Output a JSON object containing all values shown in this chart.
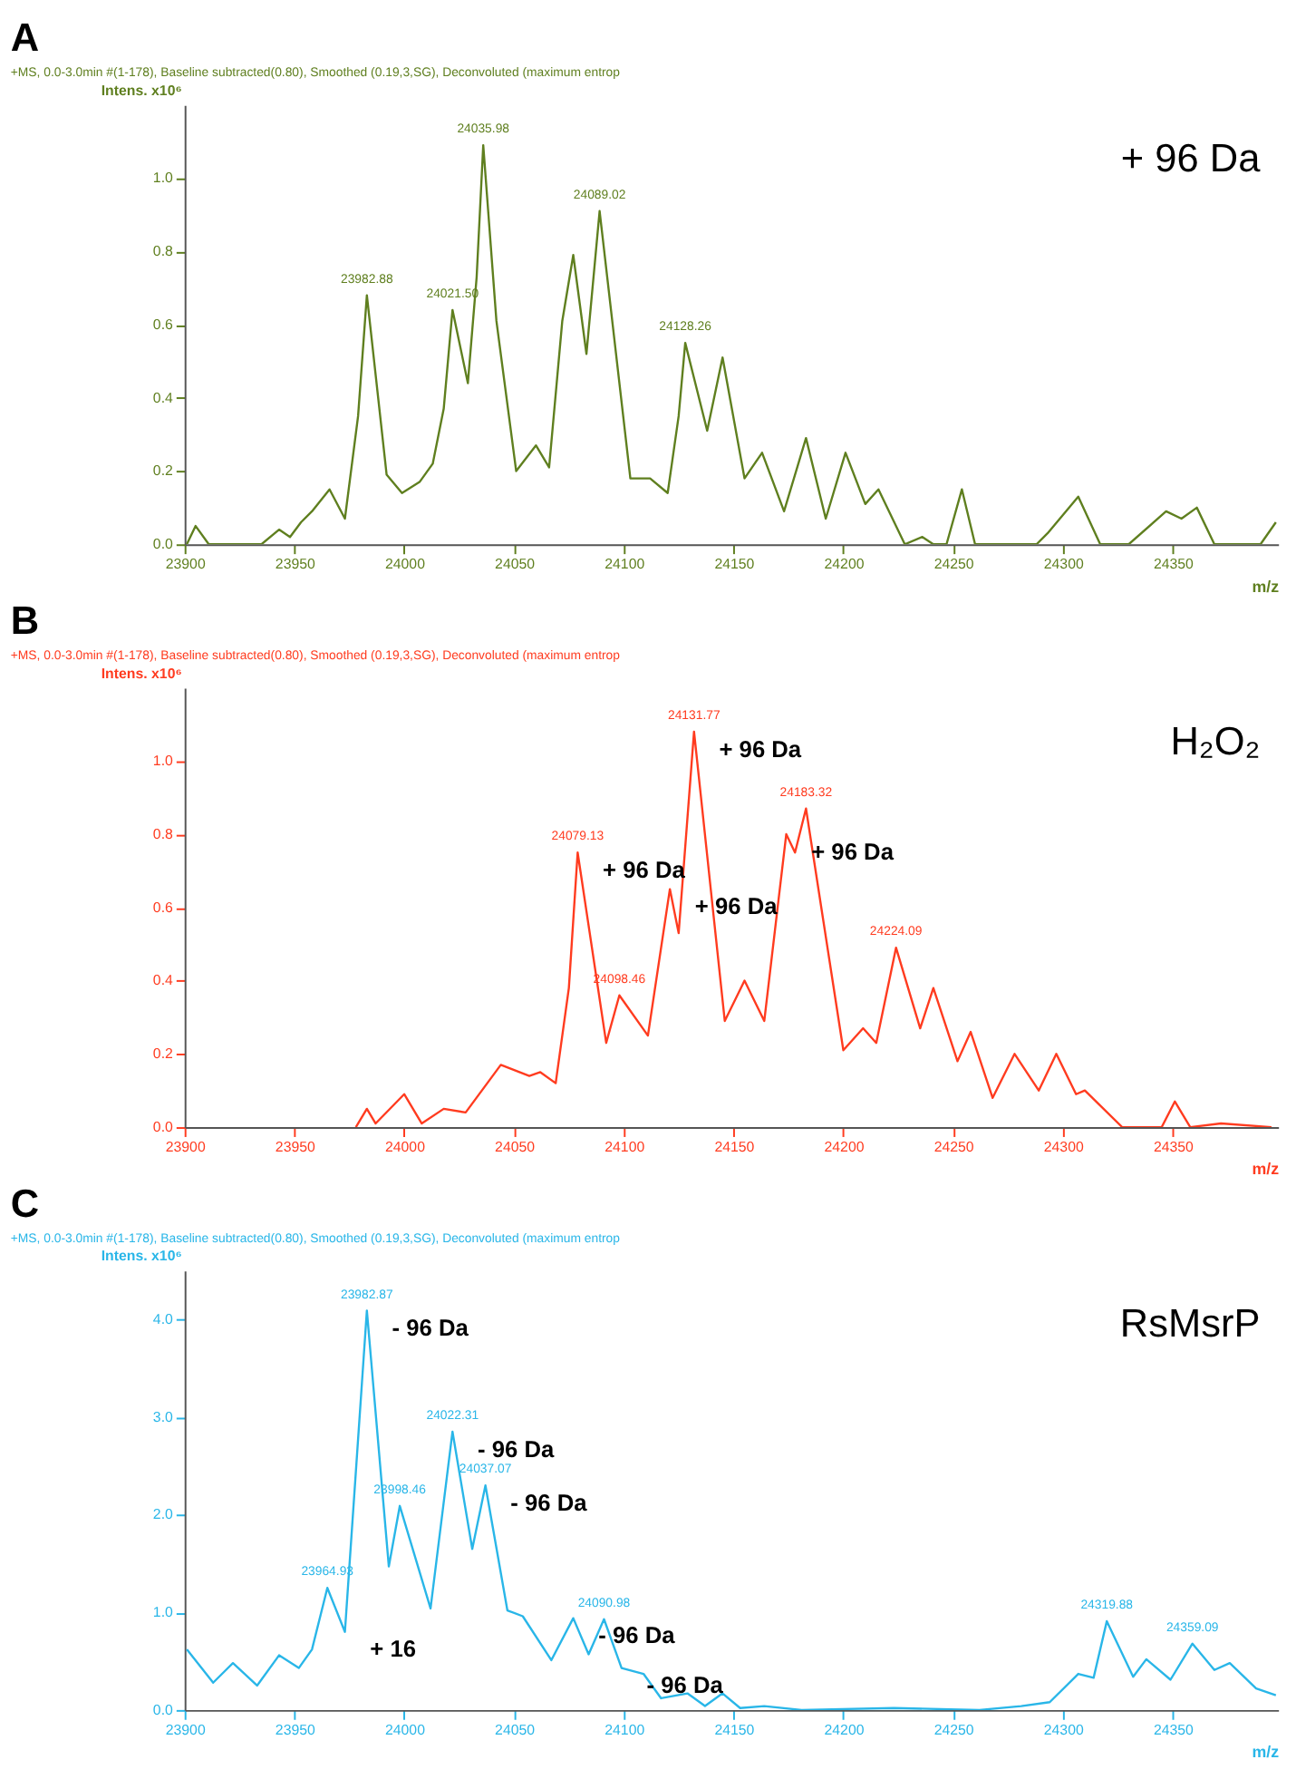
{
  "chart_data": [
    {
      "type": "line",
      "title": "A",
      "subtitle": "+MS, 0.0-3.0min #(1-178), Baseline subtracted(0.80), Smoothed (0.19,3,SG), Deconvoluted (maximum entrop",
      "xlabel": "m/z",
      "ylabel": "Intens. x10⁶",
      "x": [
        23901,
        23905,
        23911,
        23935,
        23943,
        23948,
        23953,
        23958,
        23966,
        23973,
        23979,
        23983,
        23992,
        23999,
        24007,
        24013,
        24018,
        24022,
        24029,
        24033,
        24036,
        24042,
        24051,
        24060,
        24066,
        24072,
        24077,
        24083,
        24089,
        24103,
        24112,
        24120,
        24125,
        24128,
        24138,
        24145,
        24155,
        24163,
        24173,
        24183,
        24192,
        24201,
        24210,
        24216,
        24228,
        24236,
        24241,
        24247,
        24254,
        24260,
        24273,
        24288,
        24293,
        24307,
        24317,
        24330,
        24347,
        24354,
        24361,
        24369,
        24390,
        24397
      ],
      "series": [
        {
          "color": "#5f7f1f",
          "values": [
            0,
            0.05,
            0,
            0,
            0.04,
            0.02,
            0.06,
            0.09,
            0.15,
            0.07,
            0.35,
            0.68,
            0.19,
            0.14,
            0.17,
            0.22,
            0.37,
            0.64,
            0.44,
            0.73,
            1.09,
            0.61,
            0.2,
            0.27,
            0.21,
            0.61,
            0.79,
            0.52,
            0.91,
            0.18,
            0.18,
            0.14,
            0.35,
            0.55,
            0.31,
            0.51,
            0.18,
            0.25,
            0.09,
            0.29,
            0.07,
            0.25,
            0.11,
            0.15,
            0,
            0.02,
            0,
            0,
            0.15,
            0,
            0,
            0,
            0.03,
            0.13,
            0,
            0,
            0.09,
            0.07,
            0.1,
            0,
            0,
            0.06
          ]
        }
      ],
      "xlim": [
        23900,
        24398
      ],
      "xticks": [
        23900,
        23950,
        24000,
        24050,
        24100,
        24150,
        24200,
        24250,
        24300,
        24350
      ],
      "ylim": [
        0,
        1.2
      ],
      "yticks": [
        {
          "value": 0,
          "label": "0.0"
        },
        0.2,
        0.4,
        0.6,
        0.8,
        {
          "value": 1,
          "label": "1.0"
        }
      ],
      "grid": false,
      "annotations": [
        {
          "text": "23982.88",
          "x": 23983,
          "y": 0.68
        },
        {
          "text": "24021.50",
          "x": 24022,
          "y": 0.64
        },
        {
          "text": "24035.98",
          "x": 24036,
          "y": 1.09
        },
        {
          "text": "24089.02",
          "x": 24089,
          "y": 0.91
        },
        {
          "text": "24128.26",
          "x": 24128,
          "y": 0.55
        },
        "+ 96 Da"
      ]
    },
    {
      "type": "line",
      "title": "B",
      "subtitle": "+MS, 0.0-3.0min #(1-178), Baseline subtracted(0.80), Smoothed (0.19,3,SG), Deconvoluted (maximum entrop",
      "xlabel": "m/z",
      "ylabel": "Intens. x10⁶",
      "x": [
        23978,
        23983,
        23987,
        24000,
        24008,
        24018,
        24028,
        24044,
        24057,
        24062,
        24069,
        24075,
        24079,
        24092,
        24098,
        24111,
        24121,
        24125,
        24132,
        24146,
        24155,
        24164,
        24174,
        24178,
        24183,
        24200,
        24209,
        24215,
        24224,
        24235,
        24241,
        24252,
        24258,
        24268,
        24278,
        24289,
        24297,
        24306,
        24310,
        24327,
        24335,
        24345,
        24351,
        24358,
        24372,
        24395
      ],
      "series": [
        {
          "color": "#ff3b1f",
          "values": [
            0,
            0.05,
            0.01,
            0.09,
            0.01,
            0.05,
            0.04,
            0.17,
            0.14,
            0.15,
            0.12,
            0.38,
            0.75,
            0.23,
            0.36,
            0.25,
            0.65,
            0.53,
            1.08,
            0.29,
            0.4,
            0.29,
            0.8,
            0.75,
            0.87,
            0.21,
            0.27,
            0.23,
            0.49,
            0.27,
            0.38,
            0.18,
            0.26,
            0.08,
            0.2,
            0.1,
            0.2,
            0.09,
            0.1,
            0,
            0,
            0,
            0.07,
            0,
            0.01,
            0
          ]
        }
      ],
      "xlim": [
        23900,
        24398
      ],
      "xticks": [
        23900,
        23950,
        24000,
        24050,
        24100,
        24150,
        24200,
        24250,
        24300,
        24350
      ],
      "ylim": [
        0,
        1.2
      ],
      "yticks": [
        {
          "value": 0,
          "label": "0.0"
        },
        0.2,
        0.4,
        0.6,
        0.8,
        {
          "value": 1,
          "label": "1.0"
        }
      ],
      "grid": false,
      "annotations": [
        {
          "text": "24079.13",
          "x": 24079,
          "y": 0.75
        },
        {
          "text": "24098.46",
          "x": 24098,
          "y": 0.36
        },
        {
          "text": "24131.77",
          "x": 24132,
          "y": 1.08
        },
        {
          "text": "24183.32",
          "x": 24183,
          "y": 0.87
        },
        {
          "text": "24224.09",
          "x": 24224,
          "y": 0.49
        },
        {
          "text": "+ 96 Da",
          "x": 24174,
          "y": 0.8
        },
        {
          "text": "+ 96 Da",
          "x": 24132,
          "y": 1.08
        },
        {
          "text": "+ 96 Da",
          "x": 24121,
          "y": 0.65
        },
        {
          "text": "+ 96 Da",
          "x": 24079,
          "y": 0.75
        },
        "H₂O₂"
      ]
    },
    {
      "type": "line",
      "title": "C",
      "subtitle": "+MS, 0.0-3.0min #(1-178), Baseline subtracted(0.80), Smoothed (0.19,3,SG), Deconvoluted (maximum entrop",
      "xlabel": "m/z",
      "ylabel": "Intens. x10⁶",
      "x": [
        23901,
        23913,
        23922,
        23933,
        23943,
        23952,
        23958,
        23965,
        23973,
        23983,
        23993,
        23998,
        24012,
        24022,
        24031,
        24037,
        24047,
        24054,
        24067,
        24077,
        24084,
        24091,
        24099,
        24109,
        24117,
        24129,
        24137,
        24145,
        24153,
        24164,
        24181,
        24223,
        24262,
        24281,
        24294,
        24307,
        24314,
        24320,
        24332,
        24338,
        24349,
        24359,
        24369,
        24376,
        24388,
        24397
      ],
      "series": [
        {
          "color": "#29b6e8",
          "values": [
            0.62,
            0.28,
            0.48,
            0.25,
            0.56,
            0.43,
            0.62,
            1.25,
            0.8,
            4.09,
            1.47,
            2.09,
            1.04,
            2.85,
            1.65,
            2.3,
            1.02,
            0.96,
            0.51,
            0.94,
            0.57,
            0.93,
            0.43,
            0.37,
            0.12,
            0.17,
            0.04,
            0.17,
            0.02,
            0.04,
            0,
            0.02,
            0,
            0.04,
            0.08,
            0.37,
            0.33,
            0.91,
            0.34,
            0.52,
            0.31,
            0.68,
            0.41,
            0.48,
            0.22,
            0.15
          ]
        }
      ],
      "xlim": [
        23900,
        24398
      ],
      "xticks": [
        23900,
        23950,
        24000,
        24050,
        24100,
        24150,
        24200,
        24250,
        24300,
        24350
      ],
      "ylim": [
        0,
        4.5
      ],
      "yticks": [
        {
          "value": 0,
          "label": "0.0"
        },
        {
          "value": 1,
          "label": "1.0"
        },
        {
          "value": 2,
          "label": "2.0"
        },
        {
          "value": 3,
          "label": "3.0"
        },
        {
          "value": 4,
          "label": "4.0"
        }
      ],
      "grid": false,
      "annotations": [
        {
          "text": "23964.93",
          "x": 23965,
          "y": 1.25
        },
        {
          "text": "23982.87",
          "x": 23983,
          "y": 4.09
        },
        {
          "text": "23998.46",
          "x": 23998,
          "y": 2.09
        },
        {
          "text": "24022.31",
          "x": 24022,
          "y": 2.85
        },
        {
          "text": "24037.07",
          "x": 24037,
          "y": 2.3
        },
        {
          "text": "24090.98",
          "x": 24091,
          "y": 0.93
        },
        {
          "text": "24319.88",
          "x": 24320,
          "y": 0.91
        },
        {
          "text": "24359.09",
          "x": 24359,
          "y": 0.68
        },
        {
          "text": "- 96 Da",
          "x": 23983,
          "y": 4.09
        },
        {
          "text": "- 96 Da",
          "x": 24022,
          "y": 2.85
        },
        {
          "text": "- 96 Da",
          "x": 24037,
          "y": 2.3
        },
        {
          "text": "- 96 Da",
          "x": 24077,
          "y": 0.94
        },
        {
          "text": "- 96 Da",
          "x": 24099,
          "y": 0.43
        },
        {
          "text": "+ 16",
          "x": 23973,
          "y": 0.8
        },
        "RsMsrP"
      ]
    }
  ]
}
